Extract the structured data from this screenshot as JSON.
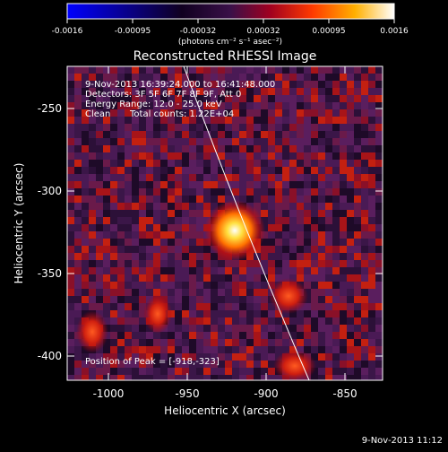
{
  "colorbar": {
    "tick_labels": [
      "-0.0016",
      "-0.00095",
      "-0.00032",
      "0.00032",
      "0.00095",
      "0.0016"
    ],
    "unit_label": "(photons cm⁻² s⁻¹ asec⁻²)",
    "colormap": [
      "#0000ff",
      "#000000",
      "#5a1e6e",
      "#c0001a",
      "#ff4a00",
      "#ffb800",
      "#ffffff"
    ]
  },
  "title": "Reconstructed RHESSI Image",
  "annotations": {
    "time_range": "9-Nov-2013 16:39:24.000 to 16:41:48.000",
    "detectors": "Detectors: 3F 5F 6F 7F 8F 9F, Att 0",
    "energy_range": "Energy Range: 12.0 - 25.0 keV",
    "method": "Clean",
    "total_counts": "Total counts: 1.22E+04",
    "peak_position": "Position of Peak = [-918,-323]"
  },
  "axes": {
    "xlabel": "Heliocentric X (arcsec)",
    "ylabel": "Heliocentric Y (arcsec)",
    "x_ticks": [
      "-1000",
      "-950",
      "-900",
      "-850"
    ],
    "y_ticks": [
      "-250",
      "-300",
      "-350",
      "-400"
    ]
  },
  "footer_timestamp": "9-Nov-2013 11:12",
  "image_data": {
    "peak_x": -918,
    "peak_y": -323,
    "x_range": [
      -1023,
      -828
    ],
    "y_range": [
      -418,
      -225
    ],
    "secondary_sources": [
      {
        "x": -887,
        "y": -365,
        "level": 0.7
      },
      {
        "x": -880,
        "y": -410,
        "level": 0.65
      },
      {
        "x": -968,
        "y": -372,
        "level": 0.55
      }
    ]
  }
}
